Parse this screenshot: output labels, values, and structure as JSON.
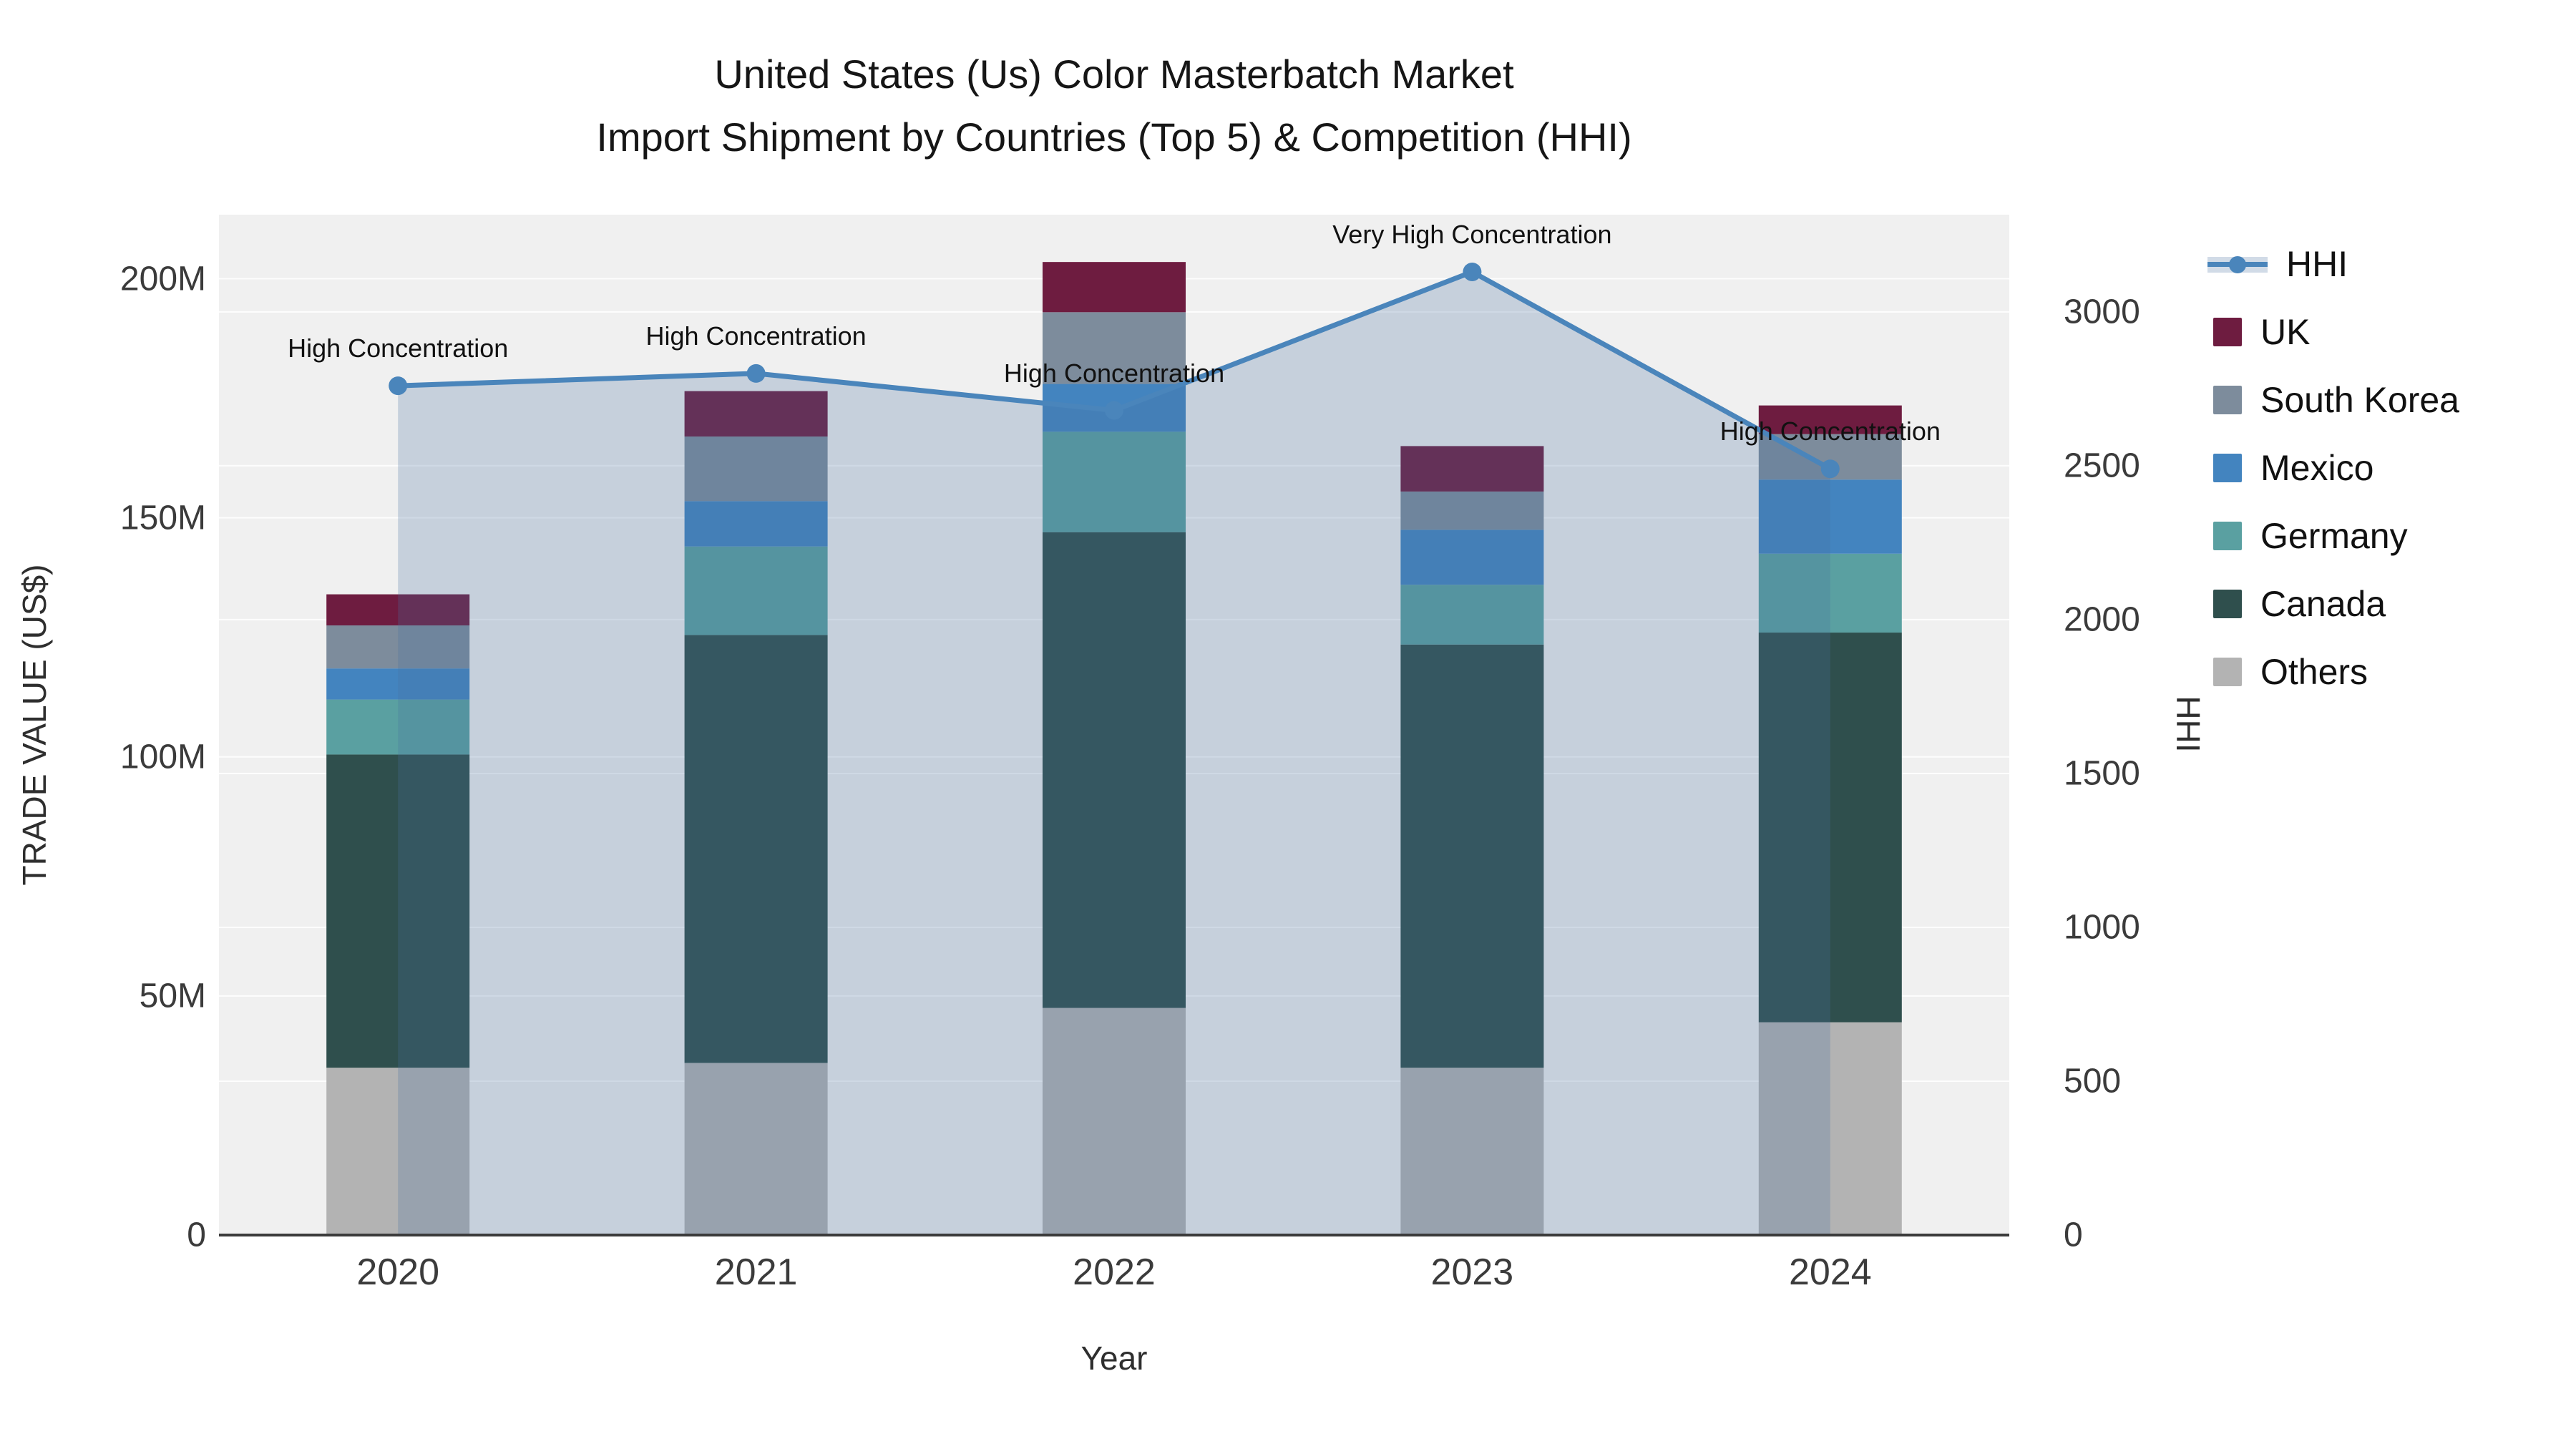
{
  "title": {
    "line1": "United States (Us) Color Masterbatch Market",
    "line2": "Import Shipment by Countries (Top 5) & Competition (HHI)"
  },
  "axes": {
    "x": {
      "title": "Year",
      "ticks": [
        "2020",
        "2021",
        "2022",
        "2023",
        "2024"
      ]
    },
    "y_left": {
      "title": "TRADE VALUE (US$)",
      "ticks": [
        {
          "label": "0",
          "value": 0
        },
        {
          "label": "50M",
          "value": 50
        },
        {
          "label": "100M",
          "value": 100
        },
        {
          "label": "150M",
          "value": 150
        },
        {
          "label": "200M",
          "value": 200
        }
      ],
      "max": 213.4
    },
    "y_right": {
      "title": "HHI",
      "ticks": [
        {
          "label": "0",
          "value": 0
        },
        {
          "label": "500",
          "value": 500
        },
        {
          "label": "1000",
          "value": 1000
        },
        {
          "label": "1500",
          "value": 1500
        },
        {
          "label": "2000",
          "value": 2000
        },
        {
          "label": "2500",
          "value": 2500
        },
        {
          "label": "3000",
          "value": 3000
        }
      ],
      "max": 3316
    }
  },
  "chart_data": {
    "type": "bar+line",
    "categories": [
      "2020",
      "2021",
      "2022",
      "2023",
      "2024"
    ],
    "bar_stack_order_note": "series listed bottom to top; values in millions US$",
    "series": [
      {
        "name": "Others",
        "color": "#b3b3b3",
        "values": [
          35.0,
          36.0,
          47.5,
          35.0,
          44.5
        ]
      },
      {
        "name": "Canada",
        "color": "#2f4f4d",
        "values": [
          65.5,
          89.5,
          99.5,
          88.5,
          81.5
        ]
      },
      {
        "name": "Germany",
        "color": "#5aa0a1",
        "values": [
          11.5,
          18.5,
          21.0,
          12.5,
          16.5
        ]
      },
      {
        "name": "Mexico",
        "color": "#4384bf",
        "values": [
          6.5,
          9.5,
          10.0,
          11.5,
          15.5
        ]
      },
      {
        "name": "South Korea",
        "color": "#7d8c9c",
        "values": [
          9.0,
          13.5,
          15.0,
          8.0,
          9.5
        ]
      },
      {
        "name": "UK",
        "color": "#6e1c40",
        "values": [
          6.5,
          9.5,
          10.5,
          9.5,
          6.0
        ]
      }
    ],
    "bar_totals": [
      134.0,
      176.5,
      203.5,
      165.0,
      173.5
    ],
    "hhi": {
      "name": "HHI",
      "line_color": "#4a85bb",
      "area_fill": "rgba(70,110,160,0.25)",
      "values": [
        2760,
        2800,
        2680,
        3130,
        2490
      ]
    },
    "annotations": [
      "High Concentration",
      "High Concentration",
      "High Concentration",
      "Very High Concentration",
      "High Concentration"
    ],
    "xlabel": "Year",
    "ylabel_left": "TRADE VALUE (US$)",
    "ylabel_right": "HHI",
    "ylim_left": [
      0,
      213.4
    ],
    "ylim_right": [
      0,
      3316
    ],
    "grid": "on",
    "legend_position": "right",
    "plot_background": "#f0f0f0",
    "gridline_color": "#ffffff"
  },
  "legend": {
    "items": [
      {
        "label": "HHI",
        "color": "#4a85bb",
        "type": "line"
      },
      {
        "label": "UK",
        "color": "#6e1c40",
        "type": "box"
      },
      {
        "label": "South Korea",
        "color": "#7d8c9c",
        "type": "box"
      },
      {
        "label": "Mexico",
        "color": "#4384bf",
        "type": "box"
      },
      {
        "label": "Germany",
        "color": "#5aa0a1",
        "type": "box"
      },
      {
        "label": "Canada",
        "color": "#2f4f4d",
        "type": "box"
      },
      {
        "label": "Others",
        "color": "#b3b3b3",
        "type": "box"
      }
    ]
  }
}
